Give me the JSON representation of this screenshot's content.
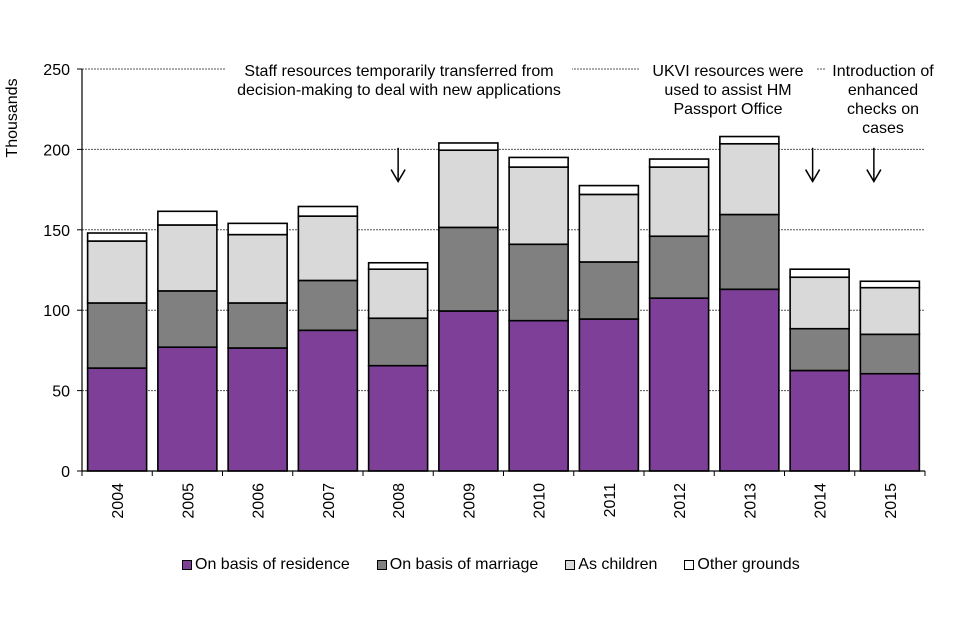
{
  "chart_data": {
    "type": "bar",
    "stacked": true,
    "title": "",
    "xlabel": "",
    "ylabel": "Thousands",
    "ylim": [
      0,
      250
    ],
    "yticks": [
      0,
      50,
      100,
      150,
      200,
      250
    ],
    "grid": "horizontal dashed",
    "categories": [
      "2004",
      "2005",
      "2006",
      "2007",
      "2008",
      "2009",
      "2010",
      "2011",
      "2012",
      "2013",
      "2014",
      "2015"
    ],
    "series": [
      {
        "name": "On basis of residence",
        "color": "#7d3f98",
        "values": [
          64,
          77,
          76.5,
          87.5,
          65.5,
          99.5,
          93.5,
          94.5,
          107.5,
          113,
          62.5,
          60.5
        ]
      },
      {
        "name": "On basis of marriage",
        "color": "#808080",
        "values": [
          40.5,
          35,
          28,
          31,
          29.5,
          52,
          47.5,
          35.5,
          38.5,
          46.5,
          26,
          24.5
        ]
      },
      {
        "name": "As children",
        "color": "#d9d9d9",
        "values": [
          38.5,
          41,
          42.5,
          40,
          30.5,
          48,
          48,
          42,
          43,
          44,
          32,
          29
        ]
      },
      {
        "name": "Other grounds",
        "color": "#ffffff",
        "values": [
          5,
          8.5,
          7,
          6,
          4,
          4.5,
          6,
          5.5,
          5,
          4.5,
          5,
          4
        ]
      }
    ],
    "legend_position": "bottom",
    "annotations": [
      {
        "text": "Staff resources temporarily transferred from decision-making to deal with new applications",
        "lines": [
          "Staff resources temporarily transferred from",
          "decision-making to deal with new applications"
        ],
        "arrow_category": "2008"
      },
      {
        "text": "UKVI resources were used to assist HM Passport Office",
        "lines": [
          "UKVI resources were",
          "used to assist HM",
          "Passport Office"
        ],
        "arrow_category": "2014"
      },
      {
        "text": "Introduction of enhanced checks on cases",
        "lines": [
          "Introduction of",
          "enhanced",
          "checks on",
          "cases"
        ],
        "arrow_category": "2015"
      }
    ]
  }
}
